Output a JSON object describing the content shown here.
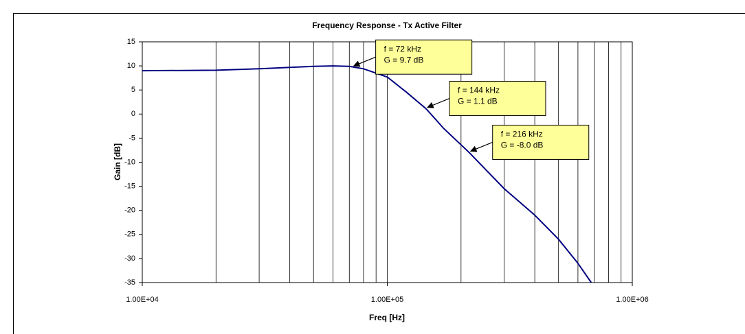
{
  "chart_data": {
    "type": "line",
    "title": "Frequency Response - Tx Active Filter",
    "x_label": "Freq [Hz]",
    "y_label": "Gain [dB]",
    "x_log": true,
    "xlim": [
      10000,
      1000000
    ],
    "xticks": [
      {
        "value": 10000,
        "label": "1.00E+04"
      },
      {
        "value": 100000,
        "label": "1.00E+05"
      },
      {
        "value": 1000000,
        "label": "1.00E+06"
      }
    ],
    "x_minor_grid": [
      20000,
      30000,
      40000,
      50000,
      60000,
      70000,
      80000,
      90000,
      200000,
      300000,
      400000,
      500000,
      600000,
      700000,
      800000,
      900000
    ],
    "ylim": [
      -35,
      15
    ],
    "yticks": [
      -35,
      -30,
      -25,
      -20,
      -15,
      -10,
      -5,
      0,
      5,
      10,
      15
    ],
    "x_grid": true,
    "y_grid": false,
    "series": [
      {
        "name": "Gain",
        "color": "#000080",
        "x": [
          10000,
          20000,
          30000,
          40000,
          50000,
          60000,
          70000,
          80000,
          100000,
          120000,
          144000,
          170000,
          216000,
          300000,
          400000,
          500000,
          600000,
          680000
        ],
        "values": [
          9.0,
          9.1,
          9.4,
          9.7,
          9.9,
          10.0,
          9.9,
          9.4,
          7.7,
          4.5,
          1.1,
          -3,
          -8,
          -15.5,
          -21,
          -26,
          -31,
          -35
        ]
      }
    ],
    "annotations": [
      {
        "lines": [
          "f  = 72 kHz",
          "G = 9.7 dB"
        ],
        "x": 72000,
        "y": 9.7
      },
      {
        "lines": [
          "f  = 144 kHz",
          "G = 1.1 dB"
        ],
        "x": 144000,
        "y": 1.1
      },
      {
        "lines": [
          "f  = 216 kHz",
          "G = -8.0 dB"
        ],
        "x": 216000,
        "y": -8.0
      }
    ]
  }
}
